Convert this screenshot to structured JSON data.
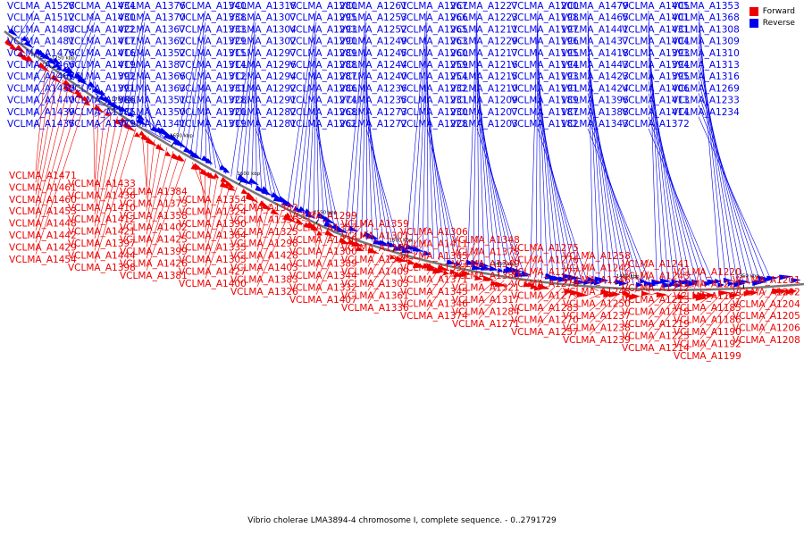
{
  "caption": "Vibrio cholerae LMA3894-4 chromosome I, complete sequence. - 0..2791729",
  "legend": [
    {
      "label": "Forward",
      "color": "#ee0000"
    },
    {
      "label": "Reverse",
      "color": "#0000ee"
    }
  ],
  "colors": {
    "forward": "#ee0000",
    "reverse": "#0000ee",
    "backbone": "#777777"
  },
  "ticks": [
    "1750 kbp",
    "1700 kbp",
    "1650 kbp",
    "1600 kbp",
    "1550 kbp",
    "1500 kbp",
    "1450 kbp",
    "1400 kbp",
    "1350 kbp"
  ],
  "reverse_genes": [
    "VCLMA_A1528",
    "VCLMA_A1512",
    "VCLMA_A1483",
    "VCLMA_A1481",
    "VCLMA_A1476",
    "VCLMA_A1466",
    "VCLMA_A1462",
    "VCLMA_A1450",
    "VCLMA_A1440",
    "VCLMA_A1439",
    "VCLMA_A1435",
    "VCLMA_A1434",
    "VCLMA_A1430",
    "VCLMA_A1422",
    "VCLMA_A1417",
    "VCLMA_A1416",
    "VCLMA_A1419",
    "VCLMA_A1392",
    "VCLMA_A1391",
    "VCLMA_A1386",
    "VCLMA_A1385",
    "VCLMA_A1379",
    "VCLMA_A1376",
    "VCLMA_A1370",
    "VCLMA_A1367",
    "VCLMA_A1362",
    "VCLMA_A1352",
    "VCLMA_A1387",
    "VCLMA_A1366",
    "VCLMA_A1363",
    "VCLMA_A1351",
    "VCLMA_A1350",
    "VCLMA_A1341",
    "VCLMA_A1340",
    "VCLMA_A1338",
    "VCLMA_A1333",
    "VCLMA_A1329",
    "VCLMA_A1315",
    "VCLMA_A1314",
    "VCLMA_A1312",
    "VCLMA_A1331",
    "VCLMA_A1328",
    "VCLMA_A1320",
    "VCLMA_A1319",
    "VCLMA_A1318",
    "VCLMA_A1307",
    "VCLMA_A1304",
    "VCLMA_A1302",
    "VCLMA_A1297",
    "VCLMA_A1296",
    "VCLMA_A1294",
    "VCLMA_A1292",
    "VCLMA_A1291",
    "VCLMA_A1282",
    "VCLMA_A1281",
    "VCLMA_A1280",
    "VCLMA_A1295",
    "VCLMA_A1293",
    "VCLMA_A1290",
    "VCLMA_A1289",
    "VCLMA_A1288",
    "VCLMA_A1287",
    "VCLMA_A1286",
    "VCLMA_A1274",
    "VCLMA_A1268",
    "VCLMA_A1262",
    "VCLMA_A1261",
    "VCLMA_A1253",
    "VCLMA_A1252",
    "VCLMA_A1249",
    "VCLMA_A1245",
    "VCLMA_A1244",
    "VCLMA_A1240",
    "VCLMA_A1236",
    "VCLMA_A1235",
    "VCLMA_A1273",
    "VCLMA_A1272",
    "VCLMA_A1267",
    "VCLMA_A1266",
    "VCLMA_A1265",
    "VCLMA_A1263",
    "VCLMA_A1260",
    "VCLMA_A1259",
    "VCLMA_A1254",
    "VCLMA_A1232",
    "VCLMA_A1231",
    "VCLMA_A1230",
    "VCLMA_A1228",
    "VCLMA_A1227",
    "VCLMA_A1223",
    "VCLMA_A1211",
    "VCLMA_A1229",
    "VCLMA_A1217",
    "VCLMA_A1216",
    "VCLMA_A1215",
    "VCLMA_A1210",
    "VCLMA_A1209",
    "VCLMA_A1207",
    "VCLMA_A1203",
    "VCLMA_A1200",
    "VCLMA_A1198",
    "VCLMA_A1197",
    "VCLMA_A1196",
    "VCLMA_A1195",
    "VCLMA_A1194",
    "VCLMA_A1193",
    "VCLMA_A1191",
    "VCLMA_A1189",
    "VCLMA_A1187",
    "VCLMA_A1182",
    "VCLMA_A1479",
    "VCLMA_A1465",
    "VCLMA_A1441",
    "VCLMA_A1437",
    "VCLMA_A1418",
    "VCLMA_A1443",
    "VCLMA_A1423",
    "VCLMA_A1424",
    "VCLMA_A1396",
    "VCLMA_A1388",
    "VCLMA_A1343",
    "VCLMA_A1405",
    "VCLMA_A1401",
    "VCLMA_A1431",
    "VCLMA_A1404",
    "VCLMA_A1393",
    "VCLMA_A1394",
    "VCLMA_A1395",
    "VCLMA_A1406",
    "VCLMA_A1413",
    "VCLMA_A1414",
    "VCLMA_A1372",
    "VCLMA_A1353",
    "VCLMA_A1368",
    "VCLMA_A1308",
    "VCLMA_A1309",
    "VCLMA_A1310",
    "VCLMA_A1313",
    "VCLMA_A1316",
    "VCLMA_A1269",
    "VCLMA_A1233",
    "VCLMA_A1234"
  ],
  "forward_genes": [
    "VCLMA_A1471",
    "VCLMA_A1461",
    "VCLMA_A1460",
    "VCLMA_A1453",
    "VCLMA_A1448",
    "VCLMA_A1442",
    "VCLMA_A1429",
    "VCLMA_A1454",
    "VCLMA_A1433",
    "VCLMA_A1436",
    "VCLMA_A1410",
    "VCLMA_A1412",
    "VCLMA_A1421",
    "VCLMA_A1397",
    "VCLMA_A1444",
    "VCLMA_A1398",
    "VCLMA_A1384",
    "VCLMA_A1373",
    "VCLMA_A1358",
    "VCLMA_A1402",
    "VCLMA_A1425",
    "VCLMA_A1399",
    "VCLMA_A1426",
    "VCLMA_A1381",
    "VCLMA_A1354",
    "VCLMA_A1324",
    "VCLMA_A1390",
    "VCLMA_A1364",
    "VCLMA_A1335",
    "VCLMA_A1305",
    "VCLMA_A1427",
    "VCLMA_A1400",
    "VCLMA_A1382",
    "VCLMA_A1356",
    "VCLMA_A1325",
    "VCLMA_A1298",
    "VCLMA_A1428",
    "VCLMA_A1403",
    "VCLMA_A1383",
    "VCLMA_A1326",
    "VCLMA_A1299",
    "VCLMA_A1357",
    "VCLMA_A1330",
    "VCLMA_A1300",
    "VCLMA_A1389",
    "VCLMA_A1344",
    "VCLMA_A1332",
    "VCLMA_A1407",
    "VCLMA_A1359",
    "VCLMA_A1301",
    "VCLMA_A1360",
    "VCLMA_A1334",
    "VCLMA_A1409",
    "VCLMA_A1303",
    "VCLMA_A1361",
    "VCLMA_A1336",
    "VCLMA_A1306",
    "VCLMA_A1411",
    "VCLMA_A1365",
    "VCLMA_A1337",
    "VCLMA_A1371",
    "VCLMA_A1345",
    "VCLMA_A1346",
    "VCLMA_A1374",
    "VCLMA_A1348",
    "VCLMA_A1378",
    "VCLMA_A1349",
    "VCLMA_A1380",
    "VCLMA_A1321",
    "VCLMA_A1317",
    "VCLMA_A1284",
    "VCLMA_A1271",
    "VCLMA_A1275",
    "VCLMA_A1276",
    "VCLMA_A1277",
    "VCLMA_A1278",
    "VCLMA_A1279",
    "VCLMA_A1283",
    "VCLMA_A1270",
    "VCLMA_A1257",
    "VCLMA_A1258",
    "VCLMA_A1242",
    "VCLMA_A1246",
    "VCLMA_A1248",
    "VCLMA_A1250",
    "VCLMA_A1237",
    "VCLMA_A1238",
    "VCLMA_A1239",
    "VCLMA_A1241",
    "VCLMA_A1243",
    "VCLMA_A1212",
    "VCLMA_A1213",
    "VCLMA_A1218",
    "VCLMA_A1219",
    "VCLMA_A1225",
    "VCLMA_A1214",
    "VCLMA_A1220",
    "VCLMA_A1221",
    "VCLMA_A1183",
    "VCLMA_A1185",
    "VCLMA_A1186",
    "VCLMA_A1190",
    "VCLMA_A1192",
    "VCLMA_A1199",
    "VCLMA_A1201",
    "VCLMA_A1202",
    "VCLMA_A1204",
    "VCLMA_A1205",
    "VCLMA_A1206",
    "VCLMA_A1208"
  ]
}
